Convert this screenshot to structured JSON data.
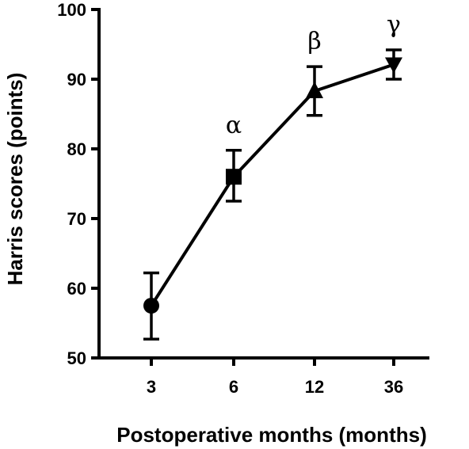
{
  "chart_data": {
    "type": "line",
    "title": "",
    "xlabel": "Postoperative months (months)",
    "ylabel": "Harris scores (points)",
    "categories": [
      "3",
      "6",
      "12",
      "36"
    ],
    "ylim": [
      50,
      100
    ],
    "yticks": [
      50,
      60,
      70,
      80,
      90,
      100
    ],
    "grid": false,
    "series": [
      {
        "values": [
          57.5,
          76.0,
          88.3,
          92.1
        ],
        "error_low": [
          52.7,
          72.5,
          84.8,
          90.0
        ],
        "error_high": [
          62.2,
          79.8,
          91.8,
          94.2
        ],
        "markers": [
          "circle",
          "square",
          "triangle-up",
          "triangle-down"
        ],
        "color": "#000000"
      }
    ],
    "annotations": [
      "",
      "α",
      "β",
      "γ"
    ]
  }
}
